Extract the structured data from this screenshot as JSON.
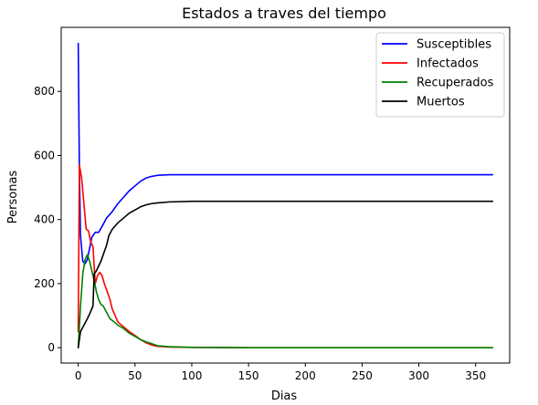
{
  "chart_data": {
    "type": "line",
    "title": "Estados a traves del tiempo",
    "xlabel": "Dias",
    "ylabel": "Personas",
    "xlim": [
      -15,
      380
    ],
    "ylim": [
      -48,
      1000
    ],
    "x_ticks": [
      0,
      50,
      100,
      150,
      200,
      250,
      300,
      350
    ],
    "y_ticks": [
      0,
      200,
      400,
      600,
      800
    ],
    "grid": false,
    "legend_position": "top-right",
    "series": [
      {
        "name": "Susceptibles",
        "color": "#0000ff",
        "points": [
          [
            0,
            950
          ],
          [
            1,
            560
          ],
          [
            2,
            350
          ],
          [
            4,
            270
          ],
          [
            6,
            262
          ],
          [
            8,
            275
          ],
          [
            10,
            310
          ],
          [
            12,
            345
          ],
          [
            15,
            360
          ],
          [
            18,
            360
          ],
          [
            22,
            385
          ],
          [
            25,
            405
          ],
          [
            30,
            425
          ],
          [
            35,
            450
          ],
          [
            40,
            470
          ],
          [
            45,
            490
          ],
          [
            50,
            505
          ],
          [
            55,
            520
          ],
          [
            60,
            530
          ],
          [
            65,
            535
          ],
          [
            70,
            538
          ],
          [
            80,
            540
          ],
          [
            100,
            540
          ],
          [
            150,
            540
          ],
          [
            200,
            540
          ],
          [
            250,
            540
          ],
          [
            300,
            540
          ],
          [
            365,
            540
          ]
        ]
      },
      {
        "name": "Infectados",
        "color": "#ff0000",
        "points": [
          [
            0,
            50
          ],
          [
            1,
            570
          ],
          [
            3,
            530
          ],
          [
            5,
            450
          ],
          [
            7,
            370
          ],
          [
            9,
            365
          ],
          [
            11,
            330
          ],
          [
            13,
            315
          ],
          [
            15,
            200
          ],
          [
            17,
            225
          ],
          [
            19,
            235
          ],
          [
            21,
            225
          ],
          [
            23,
            200
          ],
          [
            25,
            180
          ],
          [
            28,
            150
          ],
          [
            30,
            120
          ],
          [
            35,
            80
          ],
          [
            40,
            65
          ],
          [
            45,
            50
          ],
          [
            50,
            38
          ],
          [
            55,
            25
          ],
          [
            60,
            15
          ],
          [
            65,
            8
          ],
          [
            70,
            4
          ],
          [
            80,
            2
          ],
          [
            100,
            1
          ],
          [
            150,
            0
          ],
          [
            200,
            0
          ],
          [
            250,
            0
          ],
          [
            300,
            0
          ],
          [
            365,
            0
          ]
        ]
      },
      {
        "name": "Recuperados",
        "color": "#008000",
        "points": [
          [
            0,
            0
          ],
          [
            2,
            130
          ],
          [
            4,
            230
          ],
          [
            6,
            275
          ],
          [
            8,
            290
          ],
          [
            10,
            270
          ],
          [
            12,
            240
          ],
          [
            14,
            210
          ],
          [
            16,
            175
          ],
          [
            18,
            150
          ],
          [
            20,
            135
          ],
          [
            22,
            130
          ],
          [
            25,
            110
          ],
          [
            28,
            90
          ],
          [
            30,
            85
          ],
          [
            35,
            70
          ],
          [
            40,
            60
          ],
          [
            45,
            45
          ],
          [
            50,
            35
          ],
          [
            55,
            25
          ],
          [
            60,
            18
          ],
          [
            65,
            12
          ],
          [
            70,
            6
          ],
          [
            80,
            3
          ],
          [
            100,
            1
          ],
          [
            150,
            0
          ],
          [
            200,
            0
          ],
          [
            250,
            0
          ],
          [
            300,
            0
          ],
          [
            365,
            0
          ]
        ]
      },
      {
        "name": "Muertos",
        "color": "#000000",
        "points": [
          [
            0,
            0
          ],
          [
            2,
            50
          ],
          [
            5,
            70
          ],
          [
            8,
            90
          ],
          [
            10,
            105
          ],
          [
            13,
            130
          ],
          [
            14,
            230
          ],
          [
            16,
            240
          ],
          [
            18,
            255
          ],
          [
            20,
            270
          ],
          [
            22,
            290
          ],
          [
            25,
            320
          ],
          [
            27,
            350
          ],
          [
            30,
            370
          ],
          [
            35,
            390
          ],
          [
            40,
            405
          ],
          [
            45,
            420
          ],
          [
            50,
            430
          ],
          [
            55,
            440
          ],
          [
            60,
            446
          ],
          [
            65,
            450
          ],
          [
            70,
            452
          ],
          [
            80,
            455
          ],
          [
            100,
            457
          ],
          [
            150,
            457
          ],
          [
            200,
            457
          ],
          [
            250,
            457
          ],
          [
            300,
            457
          ],
          [
            365,
            457
          ]
        ]
      }
    ]
  }
}
